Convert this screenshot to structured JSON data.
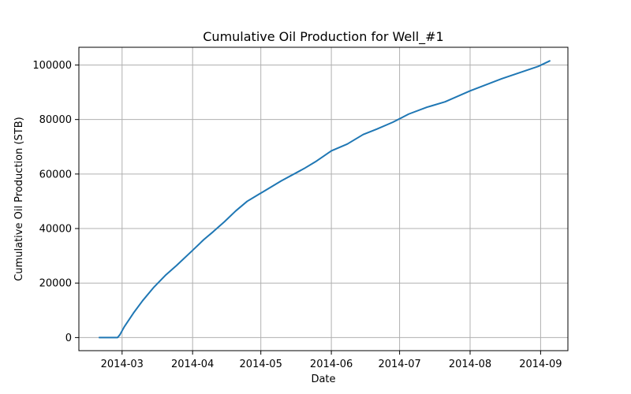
{
  "chart_data": {
    "type": "line",
    "title": "Cumulative Oil Production for Well_#1",
    "xlabel": "Date",
    "ylabel": "Cumulative Oil Production (STB)",
    "x_type": "date",
    "xlim": [
      "2014-02-10",
      "2014-09-13"
    ],
    "ylim": [
      -4800,
      106500
    ],
    "x_ticks": [
      "2014-03-01",
      "2014-04-01",
      "2014-05-01",
      "2014-06-01",
      "2014-07-01",
      "2014-08-01",
      "2014-09-01"
    ],
    "x_tick_labels": [
      "2014-03",
      "2014-04",
      "2014-05",
      "2014-06",
      "2014-07",
      "2014-08",
      "2014-09"
    ],
    "y_ticks": [
      0,
      20000,
      40000,
      60000,
      80000,
      100000
    ],
    "y_tick_labels": [
      "0",
      "20000",
      "40000",
      "60000",
      "80000",
      "100000"
    ],
    "grid": true,
    "legend": null,
    "series": [
      {
        "color": "#1f77b4",
        "x": [
          "2014-02-19",
          "2014-02-25",
          "2014-02-27",
          "2014-02-28",
          "2014-03-02",
          "2014-03-06",
          "2014-03-10",
          "2014-03-15",
          "2014-03-20",
          "2014-03-25",
          "2014-04-01",
          "2014-04-06",
          "2014-04-10",
          "2014-04-15",
          "2014-04-20",
          "2014-04-25",
          "2014-04-30",
          "2014-05-02",
          "2014-05-10",
          "2014-05-20",
          "2014-05-25",
          "2014-06-01",
          "2014-06-08",
          "2014-06-15",
          "2014-06-21",
          "2014-06-28",
          "2014-07-05",
          "2014-07-13",
          "2014-07-15",
          "2014-07-21",
          "2014-08-01",
          "2014-08-15",
          "2014-08-31",
          "2014-09-05"
        ],
        "y": [
          0,
          0,
          0,
          1000,
          4000,
          9000,
          13500,
          18500,
          22800,
          26500,
          32000,
          36000,
          38800,
          42500,
          46500,
          50000,
          52500,
          53500,
          57500,
          62000,
          64500,
          68500,
          71000,
          74500,
          76500,
          79000,
          82000,
          84500,
          85000,
          86500,
          90500,
          95000,
          99500,
          101500
        ]
      }
    ]
  }
}
